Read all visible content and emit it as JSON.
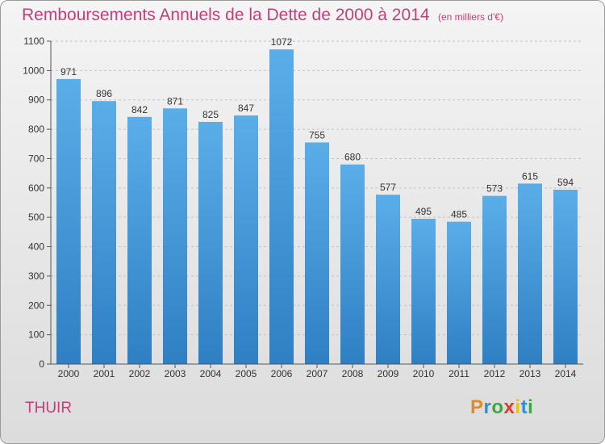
{
  "title": "Remboursements Annuels de la Dette de 2000 à 2014",
  "subtitle": "(en milliers d'€)",
  "commune": "THUIR",
  "logo": {
    "letters": [
      "P",
      "r",
      "o",
      "x",
      "i",
      "t",
      "i"
    ],
    "colors": [
      "#e88a1a",
      "#2a8fd6",
      "#3aa83a",
      "#e23a2a",
      "#e8c21a",
      "#2a8fd6",
      "#3aa83a"
    ]
  },
  "colors": {
    "bar_light": "#5aaee8",
    "bar_dark": "#2f7fc4",
    "title": "#c0407a"
  },
  "chart_data": {
    "type": "bar",
    "categories": [
      "2000",
      "2001",
      "2002",
      "2003",
      "2004",
      "2005",
      "2006",
      "2007",
      "2008",
      "2009",
      "2010",
      "2011",
      "2012",
      "2013",
      "2014"
    ],
    "values": [
      971,
      896,
      842,
      871,
      825,
      847,
      1072,
      755,
      680,
      577,
      495,
      485,
      573,
      615,
      594
    ],
    "ylim": [
      0,
      1100
    ],
    "yticks": [
      0,
      100,
      200,
      300,
      400,
      500,
      600,
      700,
      800,
      900,
      1000,
      1100
    ],
    "grid": true
  }
}
